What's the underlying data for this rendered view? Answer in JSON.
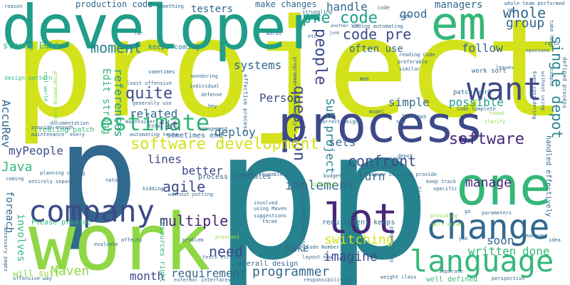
{
  "words": {
    "project": "project",
    "developer": "developer",
    "p_left": "p",
    "p_mid": "p",
    "p_right": "p",
    "work": "work",
    "process": "process",
    "em": "em",
    "one": "one",
    "company": "company",
    "lot": "lot",
    "change": "change",
    "language": "language",
    "estimate": "estimate",
    "want": "want",
    "moment": "moment",
    "pre_code": "pre code",
    "code_pre": "code pre",
    "people": "people",
    "question": "question",
    "whole": "whole",
    "group": "group",
    "follow": "follow",
    "quite": "quite",
    "software_development": "software development",
    "software": "software",
    "single_depot": "single depot",
    "agile": "agile",
    "multiple": "multiple",
    "implement": "implement",
    "switching": "switching",
    "manage": "manage",
    "need": "need",
    "programmer": "programmer",
    "imagine": "imagine",
    "written": "written",
    "done": "done",
    "soon": "soon",
    "confront": "confront",
    "Maven": "Maven",
    "month": "month",
    "requirement": "requirement",
    "Java": "Java",
    "myPeople": "myPeople",
    "AccuRev": "AccuRev",
    "better": "better",
    "lines": "lines",
    "related": "related",
    "fit": "fit",
    "simple": "simple",
    "possible": "possible",
    "deploy": "deploy",
    "Person": "Person",
    "sets": "sets",
    "turn": "turn",
    "systems": "systems",
    "handle": "handle",
    "good": "good",
    "managers": "managers",
    "testers": "testers",
    "production_code": "production code",
    "often_use": "often use",
    "Sub_project": "Sub project",
    "make_changes": "make changes",
    "make": "make",
    "strong_Edit": "strong Edit",
    "Edit_strong": "Edit strong",
    "references": "references",
    "keeps_coming": "keeps coming",
    "foreach": "foreach",
    "involves": "involves",
    "will_suit": "will suit",
    "creating_patch": "creating patch",
    "process_templates": "process templates",
    "sometimes_end": "sometimes end",
    "overall_design": "overall design",
    "Please_provide": "Please provide",
    "resources_right": "resources right",
    "well_defined": "well defined",
    "handled_effectively": "handled effectively",
    "requirement_keeps": "requirement keeps",
    "effective_process": "effective process",
    "code_Complete": "Code Complete",
    "Windows": "Windows",
    "work_sort": "work sort",
    "patch_work": "patch work",
    "defined_process": "defined process",
    "reason": "reason",
    "something": "something",
    "struggling": "struggling",
    "coding_automating": "coding automating",
    "another_SCM": "another SCM",
    "whole_team_performed": "whole team performed",
    "take_heed": "take heed",
    "opinions": "opinions",
    "ratio": "ratio",
    "reading_Code": "reading Code",
    "preferable": "preferable",
    "similar": "similar",
    "leaves": "leaves",
    "words": "words",
    "far": "far",
    "etc": "etc",
    "junk": "junk",
    "include": "include",
    "size": "size",
    "code": "code",
    "VB": "VB",
    "Web": "Web",
    "model": "model",
    "new": "new",
    "clarify": "clarify",
    "found": "found",
    "couple": "couple",
    "without_using": "without using",
    "Even_considering": "Even considering",
    "sometimes": "sometimes",
    "wondering": "wondering",
    "least_offensive": "least offensive",
    "generally_use": "generally use",
    "maintainer": "maintainer",
    "total_will": "total will",
    "hey": "hey",
    "defense": "defense",
    "individual": "individual",
    "management": "management",
    "documentation": "documentation",
    "provide_enough": "provide enough",
    "maintenance": "maintenance",
    "every": "every",
    "entirely_separate": "entirely separate",
    "coming": "coming",
    "planning_coding": "planning coding",
    "automating_tests": "automating tests",
    "nature": "nature",
    "kidding": "kidding",
    "without_putting": "without putting",
    "human_readable": "human readable",
    "involved": "involved",
    "using_Maven": "using Maven",
    "suggestions": "suggestions",
    "three": "three",
    "imagine_starting_provide": "imagine starting provide",
    "budget": "budget",
    "situation": "situation",
    "depot": "depot",
    "background": "background",
    "different": "different",
    "correct_weight": "correct weight",
    "tests_etc": "tests etc",
    "problem": "problem",
    "provided": "provided",
    "evaluate": "evaluate",
    "affects": "affects",
    "layout_now": "layout now",
    "Code_Number": "Code Number",
    "weight_class": "weight class",
    "external_interfaces": "external interfaces",
    "responsibilities": "responsibilities",
    "separate": "separate",
    "perspective": "perspective",
    "managed": "managed",
    "idea": "idea",
    "keep_track": "keep track",
    "specific": "specific",
    "go": "go",
    "yuo": "yuo",
    "parameters": "parameters",
    "providing": "providing",
    "well_scrum": "well scrum",
    "interfaces_Necessary": "interfaces Necessary",
    "offensive_way": "offensive way",
    "Given": "Given",
    "design_pattern": "design pattern",
    "real_world": "real world",
    "programming_books": "programming books",
    "Necessary_pages": "Necessary pages",
    "properly_lay": "properly lay",
    "programmer_consistently": "programmer consistently"
  }
}
